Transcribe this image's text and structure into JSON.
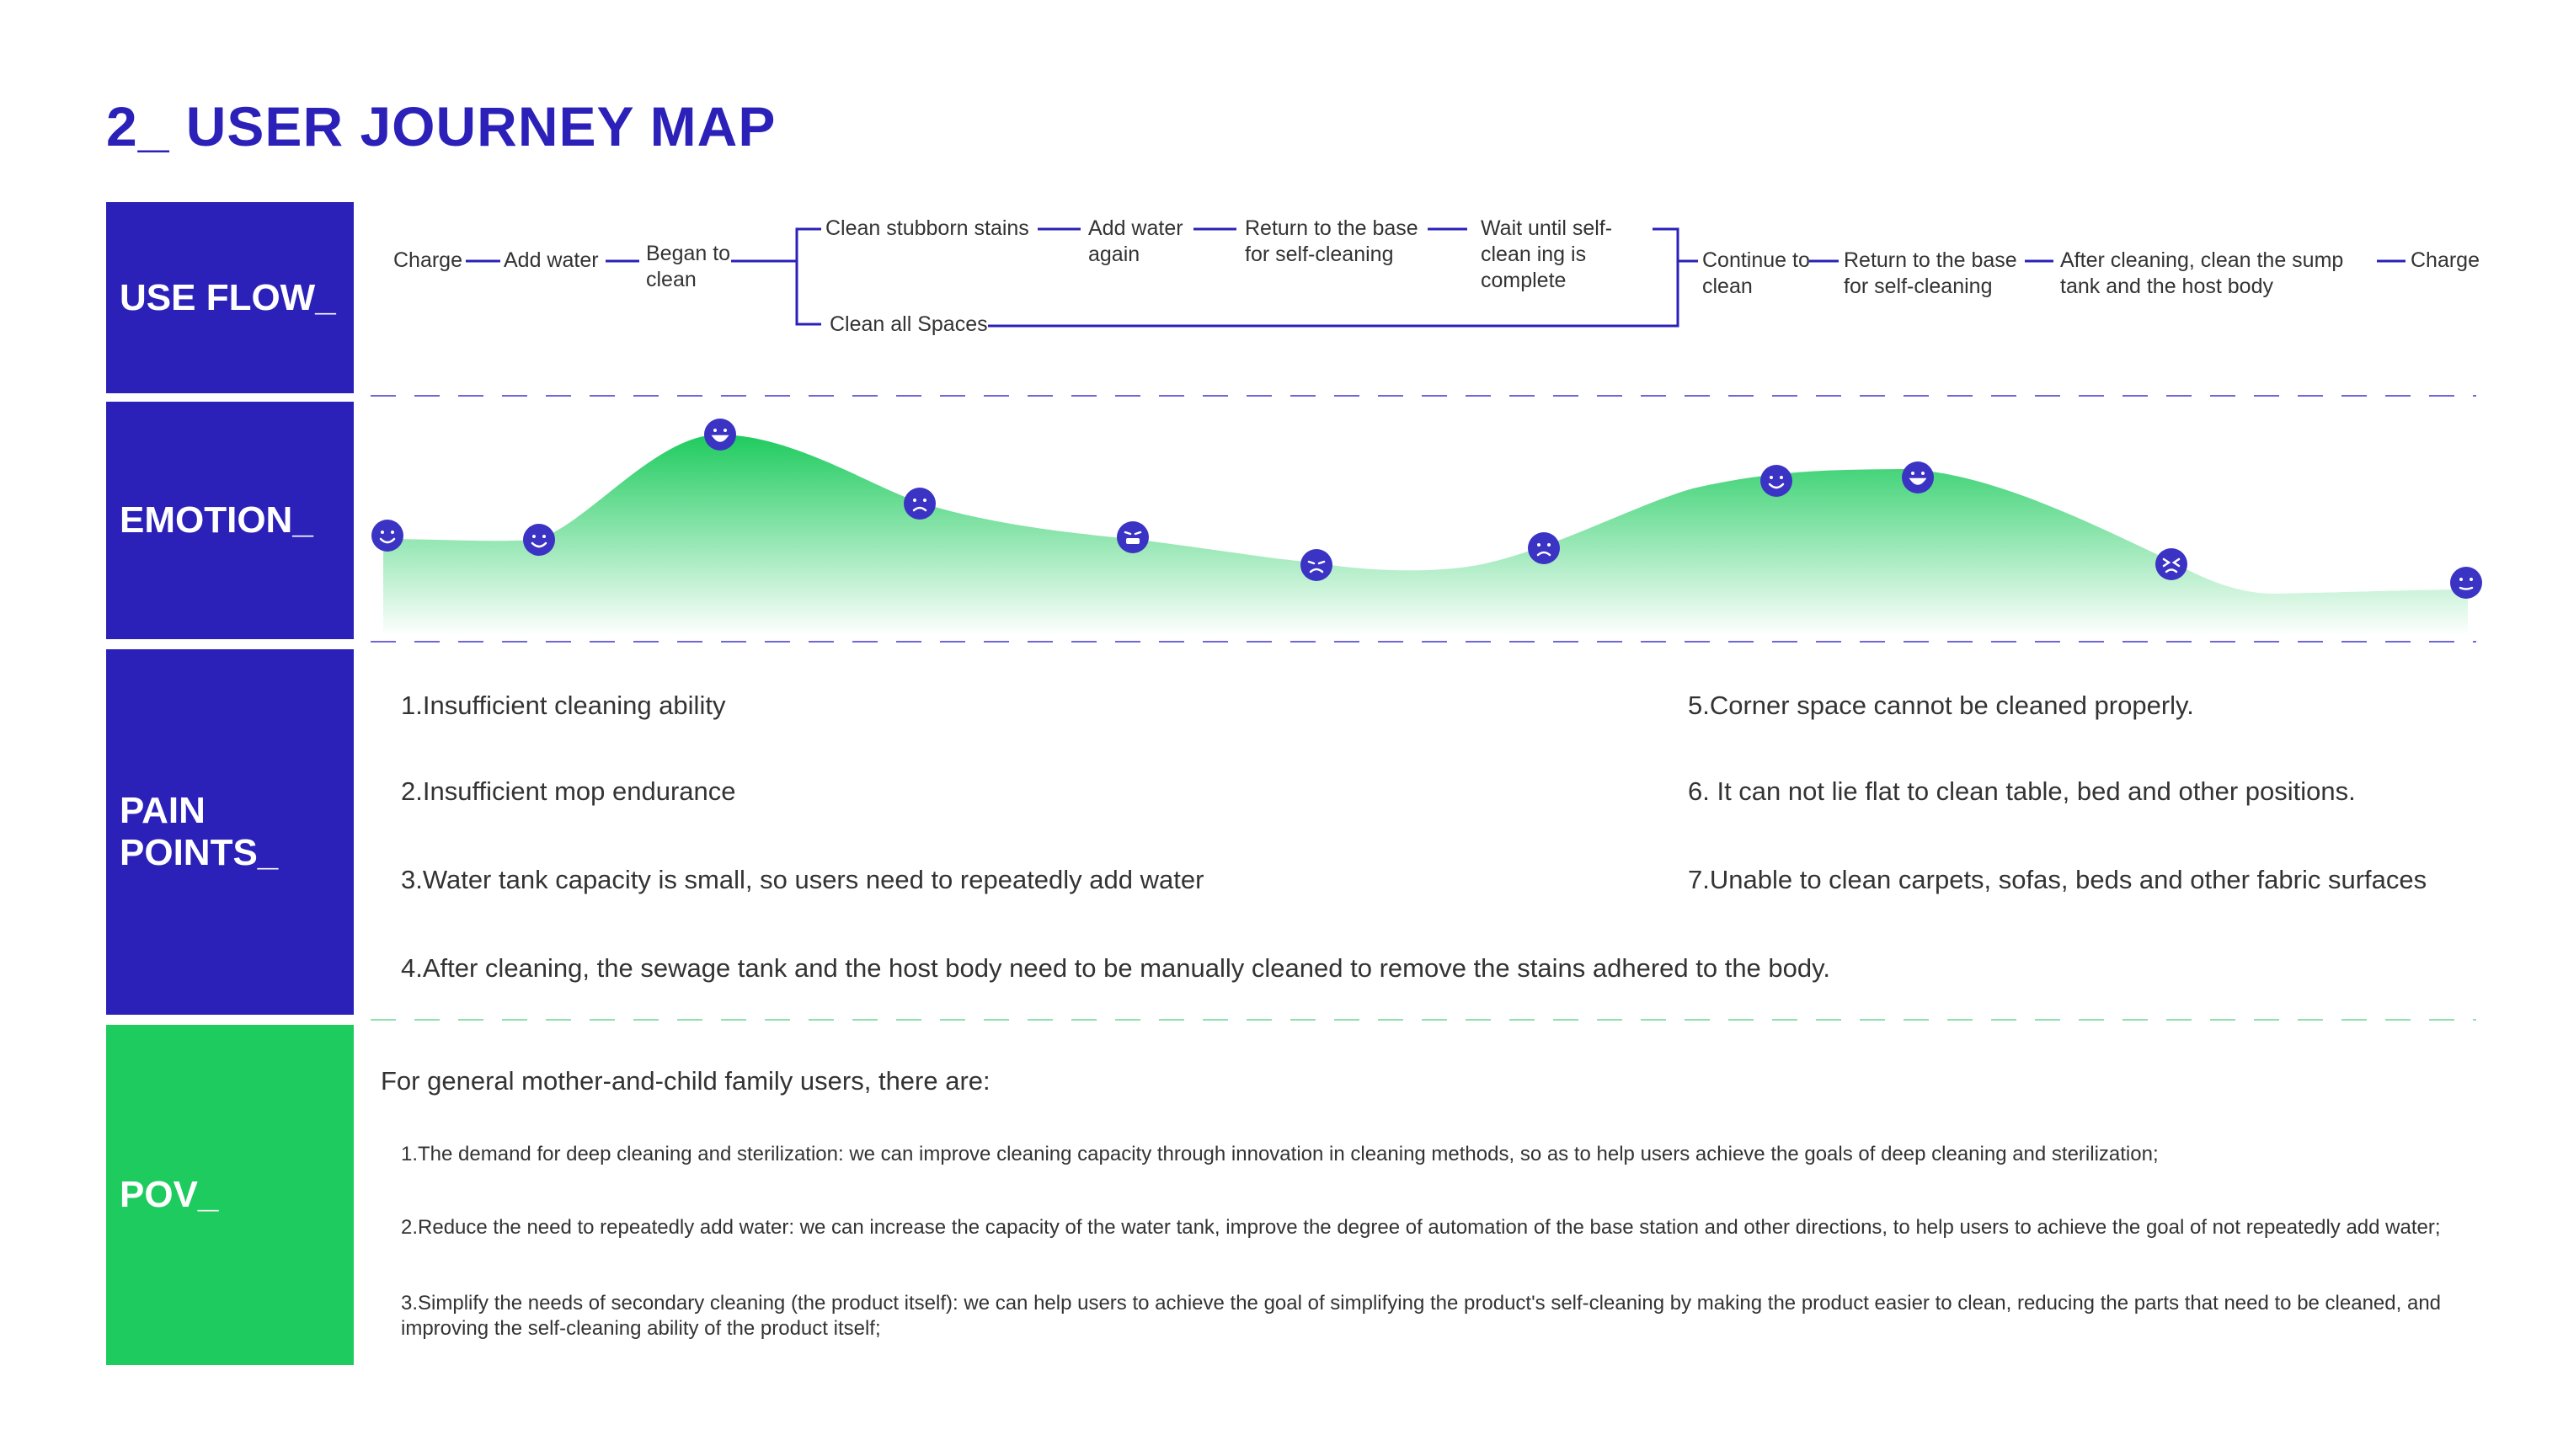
{
  "page_title": "2_ USER JOURNEY MAP",
  "sections": {
    "use_flow": "USE FLOW_",
    "emotion": "EMOTION_",
    "pain_points": "PAIN POINTS_",
    "pov": "POV_"
  },
  "use_flow": {
    "charge_start": "Charge",
    "add_water": "Add water",
    "began_to_clean": "Began to clean",
    "clean_stubborn_stains": "Clean stubborn stains",
    "add_water_again": "Add water again",
    "return_base_1": "Return to the base for self-cleaning",
    "wait_self_clean": "Wait until self-clean ing is complete",
    "clean_all_spaces": "Clean all Spaces",
    "continue_to_clean": "Continue to clean",
    "return_base_2": "Return to the base for self-cleaning",
    "after_cleaning": "After cleaning, clean the sump tank and the host body",
    "charge_end": "Charge"
  },
  "emotion_faces": [
    "smile",
    "smile",
    "laugh",
    "sad",
    "grin",
    "frown",
    "sad",
    "smile",
    "laugh",
    "angry",
    "neutral"
  ],
  "colors": {
    "accent_blue": "#2b21b8",
    "accent_green": "#1ecb5e"
  },
  "pain_points": {
    "p1": "1.Insufficient cleaning ability",
    "p2": "2.Insufficient mop endurance",
    "p3": "3.Water tank capacity is small, so users need to repeatedly add water",
    "p4": "4.After cleaning, the sewage tank and the host body need to be manually cleaned to remove the stains adhered to the body.",
    "p5": "5.Corner space cannot be cleaned properly.",
    "p6": "6. It can not lie flat to clean table, bed and other positions.",
    "p7": "7.Unable to clean carpets, sofas, beds and other fabric surfaces"
  },
  "pov": {
    "lead": "For general mother-and-child family users, there are:",
    "i1": "1.The demand for deep cleaning and sterilization:  we can improve cleaning capacity through innovation in cleaning methods, so as to help users achieve the goals of deep cleaning and sterilization;",
    "i2": "2.Reduce the need to repeatedly add water: we can increase the capacity of the water tank, improve the degree of automation of the base station and other directions, to help users to achieve the goal of not repeatedly add water;",
    "i3a": "3.Simplify the needs of secondary cleaning (the product itself): we can help users to achieve the goal of simplifying the product's self-cleaning by making the product easier to clean, reducing the parts that need to be cleaned, and",
    "i3b": "improving the self-cleaning ability of the product itself;"
  }
}
